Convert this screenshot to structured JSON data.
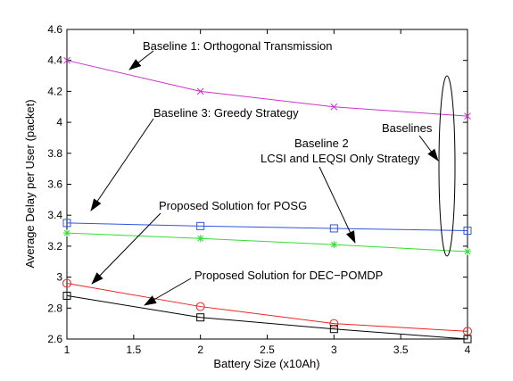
{
  "chart_data": {
    "type": "line",
    "xlabel": "Battery Size (x10Ah)",
    "ylabel": "Average Delay per User (packet)",
    "xlim": [
      1,
      4
    ],
    "ylim": [
      2.6,
      4.6
    ],
    "grid": false,
    "legend": "none",
    "x_ticks": [
      "1",
      "1.5",
      "2",
      "2.5",
      "3",
      "3.5",
      "4"
    ],
    "y_ticks": [
      "2.6",
      "2.8",
      "3",
      "3.2",
      "3.4",
      "3.6",
      "3.8",
      "4",
      "4.2",
      "4.4",
      "4.6"
    ],
    "x": [
      1,
      2,
      3,
      4
    ],
    "series": [
      {
        "values": [
          4.4,
          4.2,
          4.1,
          4.04
        ],
        "color": "#cc33cc",
        "marker": "x"
      },
      {
        "values": [
          3.35,
          3.33,
          3.315,
          3.3
        ],
        "color": "#3355dd",
        "marker": "square"
      },
      {
        "values": [
          3.285,
          3.25,
          3.21,
          3.165
        ],
        "color": "#33dd33",
        "marker": "star"
      },
      {
        "values": [
          2.96,
          2.81,
          2.7,
          2.65
        ],
        "color": "#ee2222",
        "marker": "circle"
      },
      {
        "values": [
          2.88,
          2.74,
          2.665,
          2.6
        ],
        "color": "#000000",
        "marker": "square"
      }
    ],
    "annotations": {
      "baseline1": "Baseline 1: Orthogonal Transmission",
      "baseline3": "Baseline 3: Greedy Strategy",
      "baselines": "Baselines",
      "baseline2_line1": "Baseline 2",
      "baseline2_line2": "LCSI and LEQSI Only Strategy",
      "posg": "Proposed Solution for POSG",
      "decpomdp": "Proposed Solution for DEC−POMDP"
    }
  }
}
